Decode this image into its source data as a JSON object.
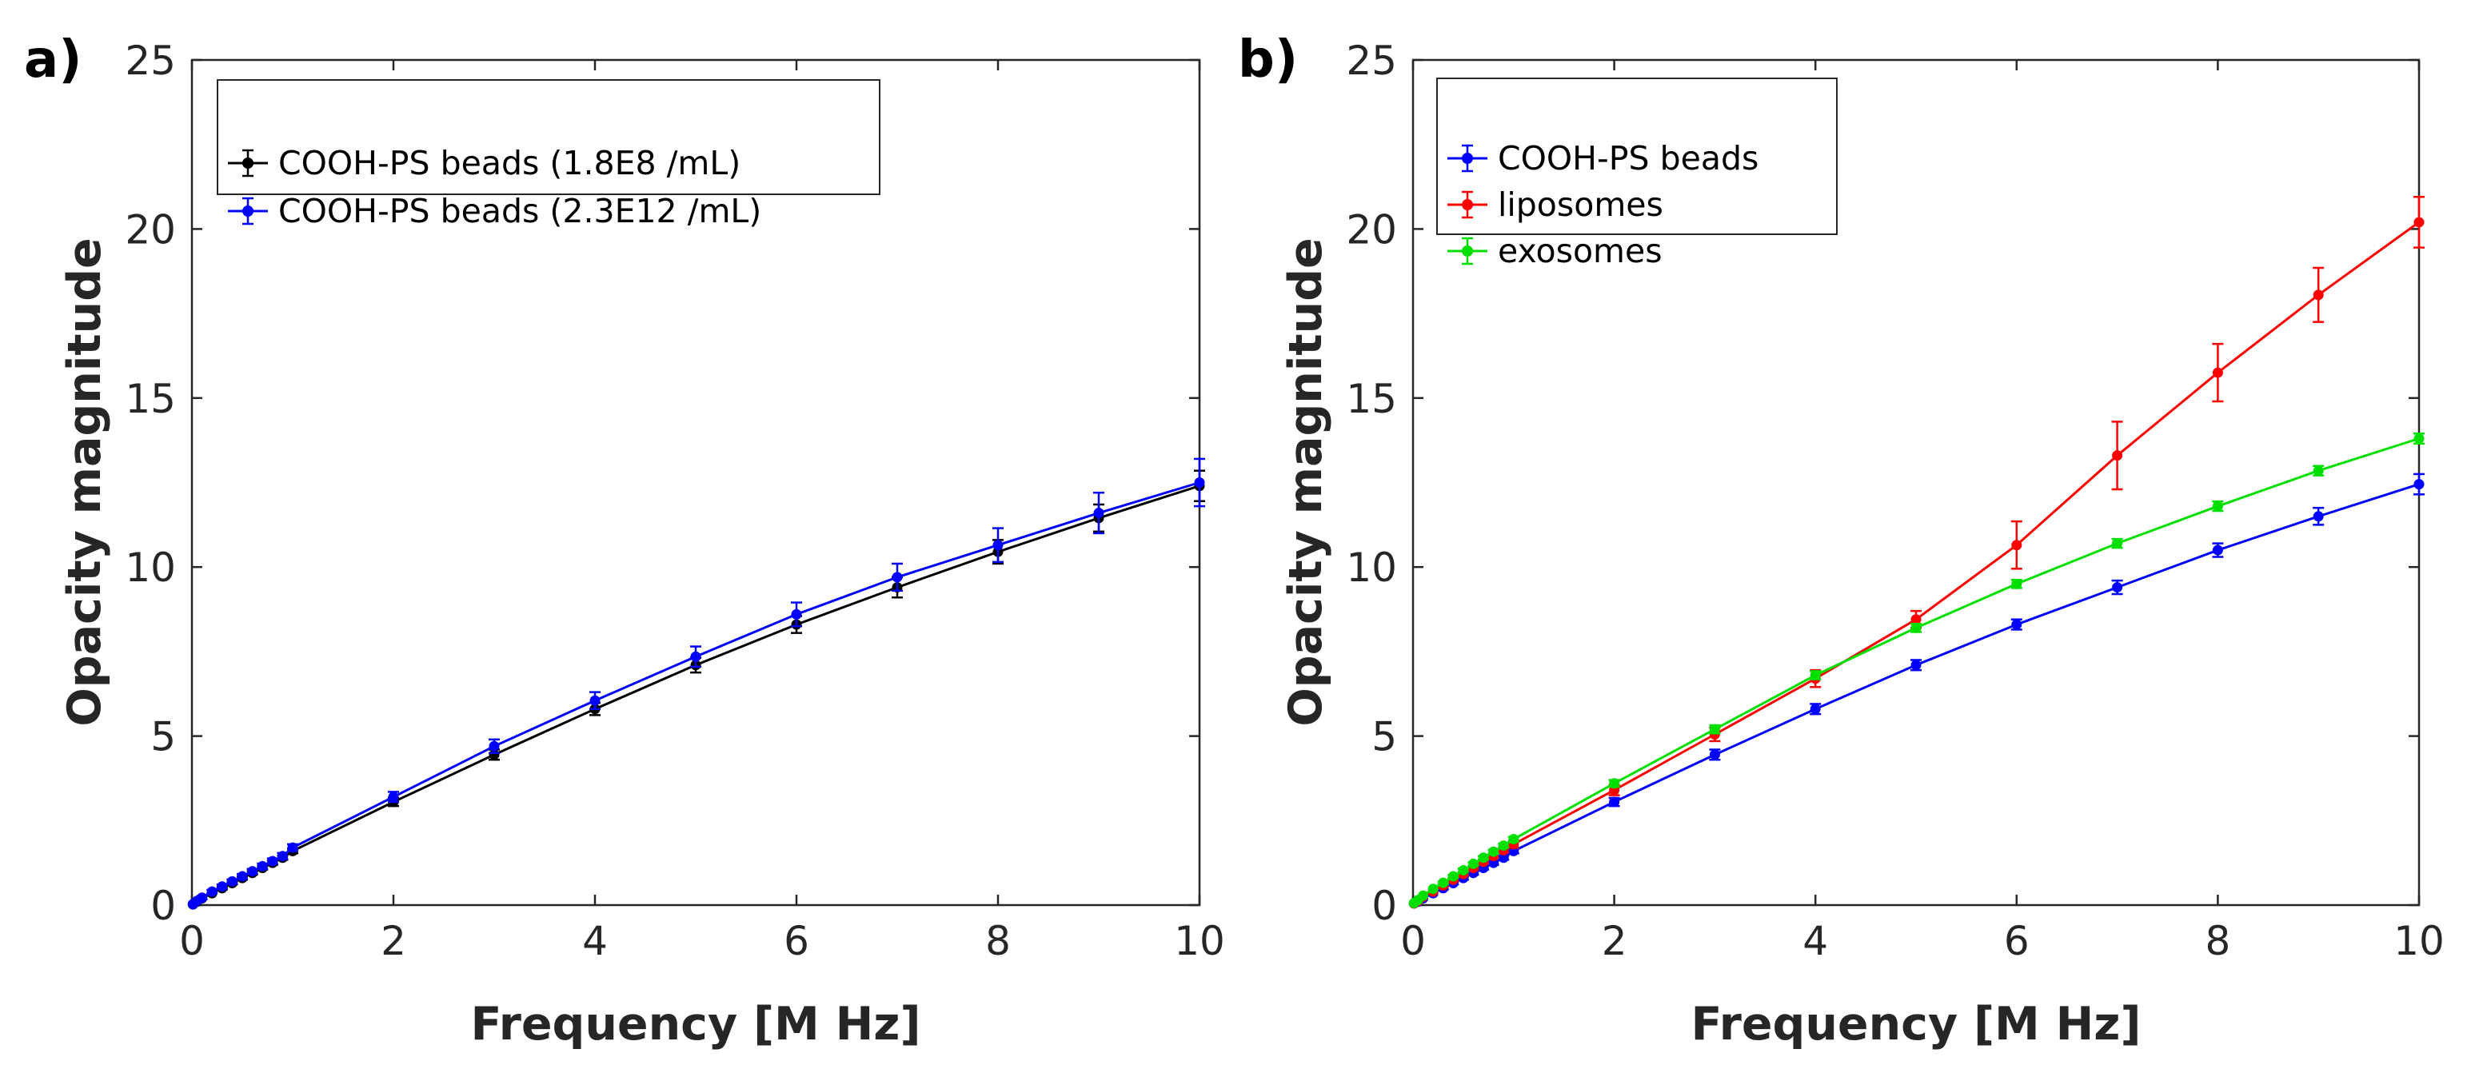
{
  "chart_data": [
    {
      "type": "line",
      "panel_label": "a)",
      "xlabel": "Frequency [M Hz]",
      "ylabel": "Opacity magnitude",
      "xlim": [
        0,
        10
      ],
      "ylim": [
        0,
        25
      ],
      "xticks": [
        0,
        2,
        4,
        6,
        8,
        10
      ],
      "yticks": [
        0,
        5,
        10,
        15,
        20,
        25
      ],
      "legend_position": "top-left",
      "grid": false,
      "series": [
        {
          "name": "COOH-PS beads (1.8E8 /mL)",
          "color": "#000000",
          "x": [
            0.01,
            0.05,
            0.1,
            0.2,
            0.3,
            0.4,
            0.5,
            0.6,
            0.7,
            0.8,
            0.9,
            1,
            2,
            3,
            4,
            5,
            6,
            7,
            8,
            9,
            10
          ],
          "y": [
            0.02,
            0.1,
            0.2,
            0.35,
            0.5,
            0.65,
            0.8,
            0.95,
            1.1,
            1.25,
            1.4,
            1.6,
            3.05,
            4.45,
            5.8,
            7.1,
            8.3,
            9.4,
            10.45,
            11.45,
            12.4
          ],
          "yerr": [
            0.02,
            0.02,
            0.03,
            0.03,
            0.04,
            0.04,
            0.05,
            0.05,
            0.05,
            0.06,
            0.06,
            0.07,
            0.12,
            0.15,
            0.18,
            0.22,
            0.25,
            0.3,
            0.35,
            0.4,
            0.45
          ]
        },
        {
          "name": "COOH-PS beads (2.3E12 /mL)",
          "color": "#0000ff",
          "x": [
            0.01,
            0.05,
            0.1,
            0.2,
            0.3,
            0.4,
            0.5,
            0.6,
            0.7,
            0.8,
            0.9,
            1,
            2,
            3,
            4,
            5,
            6,
            7,
            8,
            9,
            10
          ],
          "y": [
            0.03,
            0.12,
            0.22,
            0.4,
            0.55,
            0.7,
            0.85,
            1.0,
            1.15,
            1.3,
            1.45,
            1.7,
            3.2,
            4.7,
            6.05,
            7.35,
            8.6,
            9.7,
            10.65,
            11.6,
            12.5
          ],
          "yerr": [
            0.03,
            0.04,
            0.05,
            0.05,
            0.06,
            0.06,
            0.07,
            0.07,
            0.08,
            0.08,
            0.09,
            0.1,
            0.15,
            0.2,
            0.25,
            0.3,
            0.35,
            0.4,
            0.5,
            0.6,
            0.7
          ]
        }
      ]
    },
    {
      "type": "line",
      "panel_label": "b)",
      "xlabel": "Frequency [M Hz]",
      "ylabel": "Opacity magnitude",
      "xlim": [
        0,
        10
      ],
      "ylim": [
        0,
        25
      ],
      "xticks": [
        0,
        2,
        4,
        6,
        8,
        10
      ],
      "yticks": [
        0,
        5,
        10,
        15,
        20,
        25
      ],
      "legend_position": "top-left",
      "grid": false,
      "series": [
        {
          "name": "COOH-PS beads",
          "color": "#0000ff",
          "x": [
            0.01,
            0.05,
            0.1,
            0.2,
            0.3,
            0.4,
            0.5,
            0.6,
            0.7,
            0.8,
            0.9,
            1,
            2,
            3,
            4,
            5,
            6,
            7,
            8,
            9,
            10
          ],
          "y": [
            0.05,
            0.1,
            0.2,
            0.35,
            0.5,
            0.65,
            0.8,
            0.95,
            1.1,
            1.25,
            1.4,
            1.6,
            3.05,
            4.45,
            5.8,
            7.1,
            8.3,
            9.4,
            10.5,
            11.5,
            12.45
          ],
          "yerr": [
            0.02,
            0.02,
            0.03,
            0.03,
            0.04,
            0.04,
            0.05,
            0.05,
            0.05,
            0.06,
            0.06,
            0.07,
            0.12,
            0.15,
            0.15,
            0.15,
            0.15,
            0.2,
            0.2,
            0.25,
            0.3
          ]
        },
        {
          "name": "liposomes",
          "color": "#ff0000",
          "x": [
            0.01,
            0.05,
            0.1,
            0.2,
            0.3,
            0.4,
            0.5,
            0.6,
            0.7,
            0.8,
            0.9,
            1,
            2,
            3,
            4,
            5,
            6,
            7,
            8,
            9,
            10
          ],
          "y": [
            0.05,
            0.12,
            0.25,
            0.4,
            0.58,
            0.75,
            0.92,
            1.1,
            1.28,
            1.45,
            1.62,
            1.8,
            3.4,
            5.05,
            6.7,
            8.45,
            10.65,
            13.3,
            15.75,
            18.05,
            20.2
          ],
          "yerr": [
            0.02,
            0.02,
            0.03,
            0.03,
            0.04,
            0.04,
            0.05,
            0.05,
            0.05,
            0.06,
            0.06,
            0.1,
            0.15,
            0.2,
            0.25,
            0.25,
            0.7,
            1.0,
            0.85,
            0.8,
            0.75
          ]
        },
        {
          "name": "exosomes",
          "color": "#00e000",
          "x": [
            0.01,
            0.05,
            0.1,
            0.2,
            0.3,
            0.4,
            0.5,
            0.6,
            0.7,
            0.8,
            0.9,
            1,
            2,
            3,
            4,
            5,
            6,
            7,
            8,
            9,
            10
          ],
          "y": [
            0.06,
            0.15,
            0.28,
            0.48,
            0.66,
            0.85,
            1.03,
            1.22,
            1.4,
            1.58,
            1.76,
            1.95,
            3.6,
            5.2,
            6.8,
            8.2,
            9.5,
            10.7,
            11.8,
            12.85,
            13.8
          ],
          "yerr": [
            0.02,
            0.02,
            0.03,
            0.03,
            0.04,
            0.04,
            0.05,
            0.05,
            0.05,
            0.06,
            0.06,
            0.07,
            0.1,
            0.12,
            0.12,
            0.12,
            0.12,
            0.13,
            0.14,
            0.14,
            0.15
          ]
        }
      ]
    }
  ]
}
